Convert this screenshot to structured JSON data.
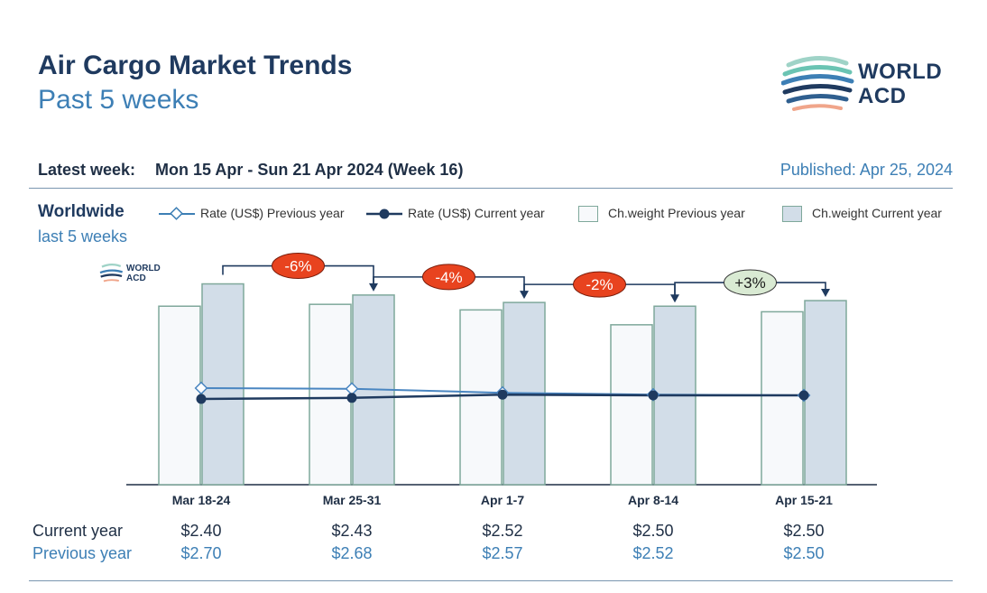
{
  "header": {
    "title": "Air Cargo Market Trends",
    "subtitle": "Past 5 weeks",
    "logo_line1": "WORLD",
    "logo_line2": "ACD",
    "latest_week_label": "Latest week:",
    "latest_week_value": "Mon 15 Apr - Sun 21 Apr 2024 (Week 16)",
    "published": "Published: Apr 25, 2024"
  },
  "region": {
    "name": "Worldwide",
    "period": "last 5 weeks"
  },
  "legend": {
    "rate_prev": "Rate (US$) Previous year",
    "rate_cur": "Rate (US$) Current year",
    "weight_prev": "Ch.weight Previous year",
    "weight_cur": "Ch.weight Current year"
  },
  "table": {
    "current_label": "Current year",
    "previous_label": "Previous year",
    "current_values": [
      "$2.40",
      "$2.43",
      "$2.52",
      "$2.50",
      "$2.50"
    ],
    "previous_values": [
      "$2.70",
      "$2.68",
      "$2.57",
      "$2.52",
      "$2.50"
    ]
  },
  "colors": {
    "navy": "#1f3a5f",
    "accent_blue": "#3d7fb5",
    "bar_prev_fill": "#f7f9fb",
    "bar_cur_fill": "#d2dde8",
    "bar_stroke": "#7fa89b",
    "negative_badge": "#e8431f",
    "positive_badge": "#d9ead3"
  },
  "chart_data": {
    "type": "bar",
    "categories": [
      "Mar 18-24",
      "Mar 25-31",
      "Apr 1-7",
      "Apr 8-14",
      "Apr 15-21"
    ],
    "series": [
      {
        "name": "Ch.weight Previous year",
        "kind": "bar",
        "values": [
          96,
          97,
          94,
          86,
          93
        ]
      },
      {
        "name": "Ch.weight Current year",
        "kind": "bar",
        "values": [
          108,
          102,
          98,
          96,
          99
        ]
      },
      {
        "name": "Rate (US$) Previous year",
        "kind": "line",
        "values": [
          2.7,
          2.68,
          2.57,
          2.52,
          2.5
        ]
      },
      {
        "name": "Rate (US$) Current year",
        "kind": "line",
        "values": [
          2.4,
          2.43,
          2.52,
          2.5,
          2.5
        ]
      }
    ],
    "changes": [
      {
        "from": 0,
        "to": 1,
        "label": "-6%",
        "sign": "negative"
      },
      {
        "from": 1,
        "to": 2,
        "label": "-4%",
        "sign": "negative"
      },
      {
        "from": 2,
        "to": 3,
        "label": "-2%",
        "sign": "negative"
      },
      {
        "from": 3,
        "to": 4,
        "label": "+3%",
        "sign": "positive"
      }
    ],
    "legend_position": "top",
    "grid": false
  }
}
